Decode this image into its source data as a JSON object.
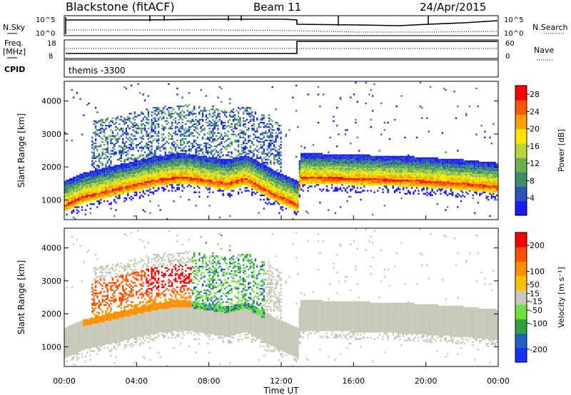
{
  "header": {
    "radar": "Blackstone (fitACF)",
    "beam": "Beam 11",
    "date": "24/Apr/2015"
  },
  "panels": {
    "nsky": {
      "left_label": "N.Sky",
      "left_ticks": [
        "10^5",
        "10^0"
      ],
      "right_ticks": [
        "10^5",
        "10^0"
      ],
      "right_label": "N.Search"
    },
    "freq": {
      "left_label_1": "Freq.",
      "left_label_2": "[MHz]",
      "left_ticks": [
        "18",
        "8"
      ],
      "right_ticks": [
        "60",
        "0"
      ],
      "right_label": "Nave"
    },
    "cpid": {
      "label": "CPID",
      "value": "themis  -3300"
    }
  },
  "colors": {
    "power": [
      "#1a1aff",
      "#2a55b8",
      "#3c8c6e",
      "#6ab050",
      "#b8d63c",
      "#ffe600",
      "#ffa000",
      "#ff5a00",
      "#ff0000"
    ],
    "velocity": [
      "#ff0000",
      "#ff5000",
      "#ff9000",
      "#ffc000",
      "#c8c8b8",
      "#70e040",
      "#30a040",
      "#2060c0",
      "#1830ff"
    ]
  },
  "chart_data": [
    {
      "type": "heatmap",
      "name": "power",
      "ylabel": "Slant Range [km]",
      "ylim": [
        400,
        4600
      ],
      "yticks": [
        1000,
        2000,
        3000,
        4000
      ],
      "xlim": [
        0,
        24
      ],
      "colorbar_label": "Power [dB]",
      "colorbar_ticks": [
        4,
        8,
        12,
        16,
        20,
        24,
        28
      ],
      "colorbar_range": [
        0,
        30
      ],
      "gap_hours": [
        13.0
      ],
      "band_center_km": [
        [
          0.0,
          850
        ],
        [
          1.0,
          1100
        ],
        [
          3.0,
          1350
        ],
        [
          5.0,
          1600
        ],
        [
          6.5,
          1700
        ],
        [
          9.0,
          1500
        ],
        [
          10.0,
          1650
        ],
        [
          11.5,
          1200
        ],
        [
          12.9,
          850
        ],
        [
          13.0,
          1700
        ],
        [
          16.0,
          1650
        ],
        [
          19.0,
          1600
        ],
        [
          22.0,
          1500
        ],
        [
          24.0,
          1400
        ]
      ]
    },
    {
      "type": "heatmap",
      "name": "velocity",
      "ylabel": "Slant Range [km]",
      "ylim": [
        400,
        4600
      ],
      "yticks": [
        1000,
        2000,
        3000,
        4000
      ],
      "xlim": [
        0,
        24
      ],
      "xticks": [
        "00:00",
        "04:00",
        "08:00",
        "12:00",
        "16:00",
        "20:00",
        "00:00"
      ],
      "xlabel": "Time UT",
      "colorbar_label": "Velocity [m s⁻¹]",
      "colorbar_ticks": [
        200,
        100,
        50,
        15,
        -15,
        -50,
        -100,
        -200
      ],
      "colorbar_range": [
        -250,
        250
      ]
    }
  ]
}
